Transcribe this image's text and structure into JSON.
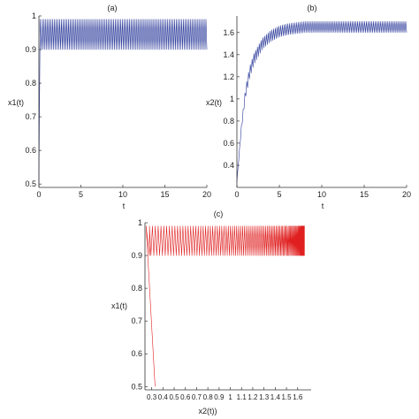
{
  "chart_data": [
    {
      "id": "a",
      "panel_label": "(a)",
      "type": "line",
      "xlabel": "t",
      "ylabel": "x1(t)",
      "xlim": [
        0,
        20
      ],
      "ylim": [
        0.49,
        1.0
      ],
      "xticks": [
        0,
        5,
        10,
        15,
        20
      ],
      "xticklabels": [
        "0",
        "5",
        "10",
        "15",
        "20"
      ],
      "yticks": [
        0.5,
        0.6,
        0.7,
        0.8,
        0.9,
        1.0
      ],
      "yticklabels": [
        "0.5",
        "0.6",
        "0.7",
        "0.8",
        "0.9",
        "1"
      ],
      "color": "#2b3a9a",
      "series": [
        {
          "x": [
            0,
            0.15,
            0.3,
            20
          ],
          "y": [
            0.5,
            0.99,
            0.9,
            0.9
          ],
          "oscillation": {
            "t_start": 0.3,
            "t_end": 20,
            "low": 0.9,
            "high": 0.99,
            "cycles": 95
          }
        }
      ]
    },
    {
      "id": "b",
      "panel_label": "(b)",
      "type": "line",
      "xlabel": "t",
      "ylabel": "x2(t)",
      "xlim": [
        0,
        20
      ],
      "ylim": [
        0.2,
        1.75
      ],
      "xticks": [
        0,
        5,
        10,
        15,
        20
      ],
      "xticklabels": [
        "0",
        "5",
        "10",
        "15",
        "20"
      ],
      "yticks": [
        0.4,
        0.6,
        0.8,
        1.0,
        1.2,
        1.4,
        1.6
      ],
      "yticklabels": [
        "0.4",
        "0.6",
        "0.8",
        "1",
        "1.2",
        "1.4",
        "1.6"
      ],
      "color": "#2b3a9a",
      "series": [
        {
          "x": [
            0,
            0.5,
            1,
            1.5,
            2,
            3,
            4,
            5,
            6,
            8,
            10,
            15,
            20
          ],
          "y": [
            0.25,
            0.72,
            1.05,
            1.24,
            1.36,
            1.5,
            1.57,
            1.61,
            1.63,
            1.65,
            1.65,
            1.65,
            1.65
          ],
          "band_amplitude": 0.05,
          "oscillation_cycles": 95
        }
      ]
    },
    {
      "id": "c",
      "panel_label": "(c)",
      "type": "line",
      "xlabel": "x2(t))",
      "ylabel": "x1(t)",
      "xlim": [
        0.24,
        1.72
      ],
      "ylim": [
        0.49,
        1.0
      ],
      "xticks": [
        0.3,
        0.4,
        0.5,
        0.6,
        0.7,
        0.8,
        0.9,
        1.0,
        1.1,
        1.2,
        1.3,
        1.4,
        1.5,
        1.6
      ],
      "xticklabels": [
        "0.3",
        "0.4",
        "0.5",
        "0.6",
        "0.7",
        "0.8",
        "0.9",
        "1",
        "1.1",
        "1.2",
        "1.3",
        "1.4",
        "1.5",
        "1.6"
      ],
      "yticks": [
        0.5,
        0.6,
        0.7,
        0.8,
        0.9,
        1.0
      ],
      "yticklabels": [
        "0.5",
        "0.6",
        "0.7",
        "0.8",
        "0.9",
        "1"
      ],
      "color": "#e02020",
      "series": [
        {
          "x": [
            0.33,
            0.25,
            0.28
          ],
          "y": [
            0.5,
            0.99,
            0.9
          ],
          "oscillation": {
            "x_start": 0.28,
            "x_end": 1.66,
            "low": 0.9,
            "high": 0.99,
            "cycles": 95
          }
        }
      ]
    }
  ]
}
